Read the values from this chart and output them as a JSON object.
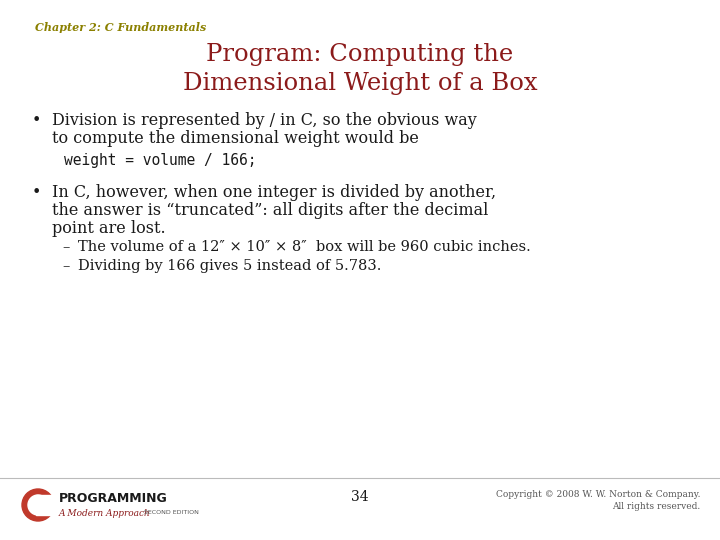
{
  "chapter_label": "Chapter 2: C Fundamentals",
  "chapter_color": "#8B8000",
  "title_line1": "Program: Computing the",
  "title_line2": "Dimensional Weight of a Box",
  "title_color": "#8B1A1A",
  "bg_color": "#FFFFFF",
  "bullet1_line1": "Division is represented by / in C, so the obvious way",
  "bullet1_line2": "to compute the dimensional weight would be",
  "code_line": "weight = volume / 166;",
  "bullet2_line1": "In C, however, when one integer is divided by another,",
  "bullet2_line2": "the answer is “truncated”: all digits after the decimal",
  "bullet2_line3": "point are lost.",
  "sub1": "The volume of a 12″ × 10″ × 8″  box will be 960 cubic inches.",
  "sub2": "Dividing by 166 gives 5 instead of 5.783.",
  "page_num": "34",
  "copyright": "Copyright © 2008 W. W. Norton & Company.\nAll rights reserved.",
  "text_color": "#1A1A1A",
  "code_color": "#1A1A1A",
  "body_fontsize": 11.5,
  "code_fontsize": 10.5,
  "sub_fontsize": 10.5,
  "title_fontsize": 17.5,
  "chapter_fontsize": 8.0
}
